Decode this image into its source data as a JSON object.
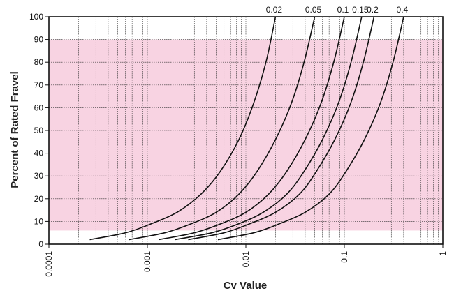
{
  "chart_data": {
    "type": "line",
    "title": "",
    "xlabel": "Cv Value",
    "ylabel": "Percent of Rated Fravel",
    "x_scale": "log",
    "xlim": [
      0.0001,
      1
    ],
    "ylim": [
      0,
      100
    ],
    "x_tick_labels": [
      "0.0001",
      "0.001",
      "0.01",
      "0.1",
      "1"
    ],
    "x_ticks": [
      0.0001,
      0.001,
      0.01,
      0.1,
      1
    ],
    "y_ticks": [
      0,
      10,
      20,
      30,
      40,
      50,
      60,
      70,
      80,
      90,
      100
    ],
    "y_tick_labels": [
      "0",
      "10",
      "20",
      "30",
      "40",
      "50",
      "60",
      "70",
      "80",
      "90",
      "100"
    ],
    "grid": true,
    "shaded_band": {
      "y_from": 6,
      "y_to": 90,
      "color": "#f8d3e2"
    },
    "line_color": "#111111",
    "series": [
      {
        "name": "0.02",
        "points": [
          [
            0.00026,
            2
          ],
          [
            0.0006,
            5
          ],
          [
            0.0011,
            9
          ],
          [
            0.002,
            14
          ],
          [
            0.0035,
            22
          ],
          [
            0.0055,
            32
          ],
          [
            0.0085,
            46
          ],
          [
            0.012,
            62
          ],
          [
            0.016,
            80
          ],
          [
            0.02,
            100
          ]
        ]
      },
      {
        "name": "0.05",
        "points": [
          [
            0.00065,
            2
          ],
          [
            0.0015,
            5
          ],
          [
            0.0028,
            9
          ],
          [
            0.005,
            14
          ],
          [
            0.0085,
            22
          ],
          [
            0.013,
            32
          ],
          [
            0.02,
            46
          ],
          [
            0.029,
            62
          ],
          [
            0.039,
            80
          ],
          [
            0.05,
            100
          ]
        ]
      },
      {
        "name": "0.1",
        "points": [
          [
            0.0013,
            2
          ],
          [
            0.003,
            5
          ],
          [
            0.0056,
            9
          ],
          [
            0.01,
            14
          ],
          [
            0.017,
            22
          ],
          [
            0.026,
            32
          ],
          [
            0.04,
            46
          ],
          [
            0.058,
            62
          ],
          [
            0.078,
            80
          ],
          [
            0.1,
            100
          ]
        ]
      },
      {
        "name": "0.15",
        "points": [
          [
            0.0019,
            2
          ],
          [
            0.0045,
            5
          ],
          [
            0.0085,
            9
          ],
          [
            0.015,
            14
          ],
          [
            0.026,
            22
          ],
          [
            0.039,
            32
          ],
          [
            0.06,
            46
          ],
          [
            0.087,
            62
          ],
          [
            0.117,
            80
          ],
          [
            0.15,
            100
          ]
        ]
      },
      {
        "name": "0.2",
        "points": [
          [
            0.0026,
            2
          ],
          [
            0.006,
            5
          ],
          [
            0.011,
            9
          ],
          [
            0.02,
            14
          ],
          [
            0.035,
            22
          ],
          [
            0.052,
            32
          ],
          [
            0.08,
            46
          ],
          [
            0.116,
            62
          ],
          [
            0.156,
            80
          ],
          [
            0.2,
            100
          ]
        ]
      },
      {
        "name": "0.4",
        "points": [
          [
            0.0052,
            2
          ],
          [
            0.012,
            5
          ],
          [
            0.022,
            9
          ],
          [
            0.04,
            14
          ],
          [
            0.07,
            22
          ],
          [
            0.104,
            32
          ],
          [
            0.16,
            46
          ],
          [
            0.232,
            62
          ],
          [
            0.312,
            80
          ],
          [
            0.4,
            100
          ]
        ]
      }
    ]
  }
}
